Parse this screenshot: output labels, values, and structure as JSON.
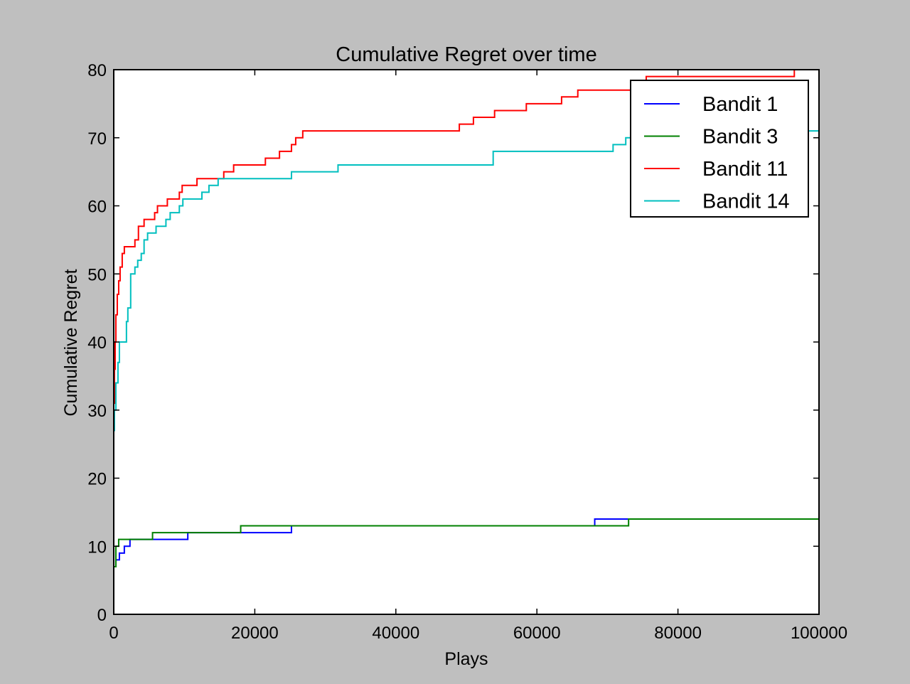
{
  "chart_data": {
    "type": "line",
    "title": "Cumulative Regret over time",
    "xlabel": "Plays",
    "ylabel": "Cumulative Regret",
    "xlim": [
      0,
      100000
    ],
    "ylim": [
      0,
      80
    ],
    "xticks": [
      0,
      20000,
      40000,
      60000,
      80000,
      100000
    ],
    "yticks": [
      0,
      10,
      20,
      30,
      40,
      50,
      60,
      70,
      80
    ],
    "grid": false,
    "legend_position": "top-right",
    "series": [
      {
        "name": "Bandit 1",
        "color": "#0000ff",
        "step": true,
        "points": [
          [
            0,
            7
          ],
          [
            300,
            8
          ],
          [
            800,
            9
          ],
          [
            1500,
            10
          ],
          [
            2300,
            11
          ],
          [
            10500,
            12
          ],
          [
            25200,
            13
          ],
          [
            68200,
            14
          ],
          [
            100000,
            14
          ]
        ]
      },
      {
        "name": "Bandit 3",
        "color": "#008000",
        "step": true,
        "points": [
          [
            0,
            7
          ],
          [
            300,
            10
          ],
          [
            700,
            11
          ],
          [
            5500,
            12
          ],
          [
            18000,
            13
          ],
          [
            73000,
            14
          ],
          [
            100000,
            14
          ]
        ]
      },
      {
        "name": "Bandit 11",
        "color": "#ff0000",
        "step": true,
        "points": [
          [
            0,
            31
          ],
          [
            100,
            36
          ],
          [
            200,
            40
          ],
          [
            300,
            44
          ],
          [
            500,
            47
          ],
          [
            700,
            49
          ],
          [
            900,
            51
          ],
          [
            1200,
            53
          ],
          [
            1500,
            54
          ],
          [
            3000,
            55
          ],
          [
            3500,
            57
          ],
          [
            4300,
            58
          ],
          [
            5800,
            59
          ],
          [
            6200,
            60
          ],
          [
            7600,
            61
          ],
          [
            9300,
            62
          ],
          [
            9700,
            63
          ],
          [
            11800,
            64
          ],
          [
            15600,
            65
          ],
          [
            17000,
            66
          ],
          [
            21500,
            67
          ],
          [
            23500,
            68
          ],
          [
            25200,
            69
          ],
          [
            25800,
            70
          ],
          [
            26800,
            71
          ],
          [
            49000,
            72
          ],
          [
            51000,
            73
          ],
          [
            54000,
            74
          ],
          [
            58500,
            75
          ],
          [
            63500,
            76
          ],
          [
            65800,
            77
          ],
          [
            75500,
            79
          ],
          [
            96500,
            80
          ],
          [
            100000,
            80
          ]
        ]
      },
      {
        "name": "Bandit 14",
        "color": "#00bfbf",
        "step": true,
        "points": [
          [
            0,
            27
          ],
          [
            100,
            30
          ],
          [
            300,
            34
          ],
          [
            600,
            37
          ],
          [
            800,
            40
          ],
          [
            1800,
            43
          ],
          [
            2000,
            45
          ],
          [
            2400,
            50
          ],
          [
            3000,
            51
          ],
          [
            3400,
            52
          ],
          [
            3900,
            53
          ],
          [
            4300,
            55
          ],
          [
            4800,
            56
          ],
          [
            6000,
            57
          ],
          [
            7400,
            58
          ],
          [
            8000,
            59
          ],
          [
            9300,
            60
          ],
          [
            9800,
            61
          ],
          [
            12500,
            62
          ],
          [
            13500,
            63
          ],
          [
            14800,
            64
          ],
          [
            25200,
            65
          ],
          [
            31800,
            66
          ],
          [
            53800,
            68
          ],
          [
            70800,
            69
          ],
          [
            72600,
            70
          ],
          [
            75500,
            71
          ],
          [
            100000,
            72
          ]
        ]
      }
    ]
  }
}
